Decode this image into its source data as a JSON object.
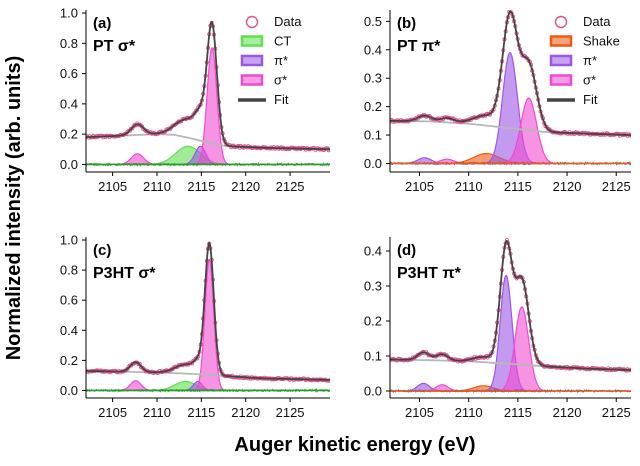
{
  "figure": {
    "ylabel": "Normalized intensity (arb. units)",
    "xlabel": "Auger kinetic energy (eV)"
  },
  "chart_data": [
    {
      "type": "line",
      "panel": "(a)",
      "title": "PT σ*",
      "xlim": [
        2102,
        2129.5
      ],
      "xticks": [
        2105,
        2110,
        2115,
        2120,
        2125
      ],
      "ylim": [
        -0.05,
        1.02
      ],
      "yticks": [
        0.0,
        0.2,
        0.4,
        0.6,
        0.8,
        1.0
      ],
      "grid": false,
      "legend": {
        "position": "top-right",
        "entries": [
          "Data",
          "CT",
          "π*",
          "σ*",
          "Fit"
        ]
      },
      "background": {
        "x": [
          2102,
          2106,
          2110,
          2112,
          2114,
          2116,
          2118,
          2122,
          2129.5
        ],
        "y": [
          0.18,
          0.19,
          0.2,
          0.195,
          0.17,
          0.14,
          0.12,
          0.11,
          0.1
        ]
      },
      "peaks": [
        {
          "series": "σ*",
          "center": 2107.8,
          "height": 0.07,
          "width": 0.7
        },
        {
          "series": "CT",
          "center": 2113.5,
          "height": 0.12,
          "width": 1.4
        },
        {
          "series": "π*",
          "center": 2114.9,
          "height": 0.12,
          "width": 0.6
        },
        {
          "series": "σ*",
          "center": 2116.2,
          "height": 0.77,
          "width": 0.55
        }
      ]
    },
    {
      "type": "line",
      "panel": "(b)",
      "title": "PT π*",
      "xlim": [
        2102,
        2126.5
      ],
      "xticks": [
        2105,
        2110,
        2115,
        2120,
        2125
      ],
      "ylim": [
        -0.03,
        0.54
      ],
      "yticks": [
        0.0,
        0.1,
        0.2,
        0.3,
        0.4,
        0.5
      ],
      "grid": false,
      "legend": {
        "position": "top-right",
        "entries": [
          "Data",
          "Shake",
          "π*",
          "σ*",
          "Fit"
        ]
      },
      "background": {
        "x": [
          2102,
          2106,
          2110,
          2114,
          2118,
          2122,
          2126.5
        ],
        "y": [
          0.15,
          0.148,
          0.14,
          0.125,
          0.11,
          0.105,
          0.1
        ]
      },
      "peaks": [
        {
          "series": "π*",
          "center": 2105.5,
          "height": 0.02,
          "width": 0.7
        },
        {
          "series": "σ*",
          "center": 2107.8,
          "height": 0.015,
          "width": 0.7
        },
        {
          "series": "Shake",
          "center": 2111.8,
          "height": 0.035,
          "width": 1.3
        },
        {
          "series": "π*",
          "center": 2114.2,
          "height": 0.39,
          "width": 0.75
        },
        {
          "series": "σ*",
          "center": 2116.1,
          "height": 0.23,
          "width": 0.8
        }
      ]
    },
    {
      "type": "line",
      "panel": "(c)",
      "title": "P3HT σ*",
      "xlim": [
        2102,
        2129.5
      ],
      "xticks": [
        2105,
        2110,
        2115,
        2120,
        2125
      ],
      "ylim": [
        -0.05,
        1.02
      ],
      "yticks": [
        0.0,
        0.2,
        0.4,
        0.6,
        0.8,
        1.0
      ],
      "grid": false,
      "background": {
        "x": [
          2102,
          2106,
          2110,
          2114,
          2118,
          2122,
          2129.5
        ],
        "y": [
          0.13,
          0.125,
          0.12,
          0.11,
          0.095,
          0.08,
          0.07
        ]
      },
      "peaks": [
        {
          "series": "σ*",
          "center": 2107.6,
          "height": 0.065,
          "width": 0.6
        },
        {
          "series": "CT",
          "center": 2113.2,
          "height": 0.06,
          "width": 1.2
        },
        {
          "series": "π*",
          "center": 2114.6,
          "height": 0.06,
          "width": 0.5
        },
        {
          "series": "σ*",
          "center": 2115.9,
          "height": 0.87,
          "width": 0.5
        }
      ]
    },
    {
      "type": "line",
      "panel": "(d)",
      "title": "P3HT π*",
      "xlim": [
        2102,
        2126.5
      ],
      "xticks": [
        2105,
        2110,
        2115,
        2120,
        2125
      ],
      "ylim": [
        -0.02,
        0.44
      ],
      "yticks": [
        0.0,
        0.1,
        0.2,
        0.3,
        0.4
      ],
      "grid": false,
      "background": {
        "x": [
          2102,
          2106,
          2110,
          2114,
          2118,
          2122,
          2126.5
        ],
        "y": [
          0.09,
          0.088,
          0.085,
          0.078,
          0.07,
          0.064,
          0.06
        ]
      },
      "peaks": [
        {
          "series": "π*",
          "center": 2105.4,
          "height": 0.022,
          "width": 0.6
        },
        {
          "series": "σ*",
          "center": 2107.3,
          "height": 0.018,
          "width": 0.6
        },
        {
          "series": "Shake",
          "center": 2111.5,
          "height": 0.015,
          "width": 1.0
        },
        {
          "series": "π*",
          "center": 2113.8,
          "height": 0.33,
          "width": 0.6
        },
        {
          "series": "σ*",
          "center": 2115.4,
          "height": 0.24,
          "width": 0.7
        }
      ]
    }
  ],
  "colors": {
    "Data": "#e0508a",
    "Fit": "#444444",
    "background": "#b8b8b8",
    "residual": "#2a9a30",
    "residual_b": "#2c57c8",
    "CT": "#5fe04f",
    "Shake": "#f05a10",
    "π*": "#9b57e6",
    "σ*": "#f04bd0"
  }
}
